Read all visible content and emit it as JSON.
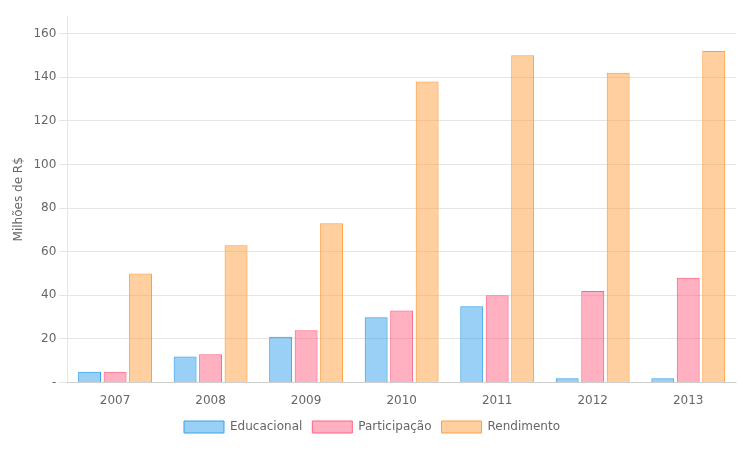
{
  "chart_data": {
    "type": "bar",
    "categories": [
      "2007",
      "2008",
      "2009",
      "2010",
      "2011",
      "2012",
      "2013"
    ],
    "series": [
      {
        "name": "Educacional",
        "values": [
          5,
          12,
          21,
          30,
          35,
          2,
          2
        ]
      },
      {
        "name": "Participação",
        "values": [
          5,
          13,
          24,
          33,
          40,
          42,
          48
        ]
      },
      {
        "name": "Rendimento",
        "values": [
          50,
          63,
          73,
          138,
          150,
          142,
          152
        ]
      }
    ],
    "ylabel": "Milhões de R$",
    "ylim": [
      0,
      168
    ],
    "yticks": [
      {
        "value": 0,
        "label": "-"
      },
      20,
      40,
      60,
      80,
      100,
      120,
      140,
      160
    ],
    "grid": true,
    "legend": "bottom"
  }
}
